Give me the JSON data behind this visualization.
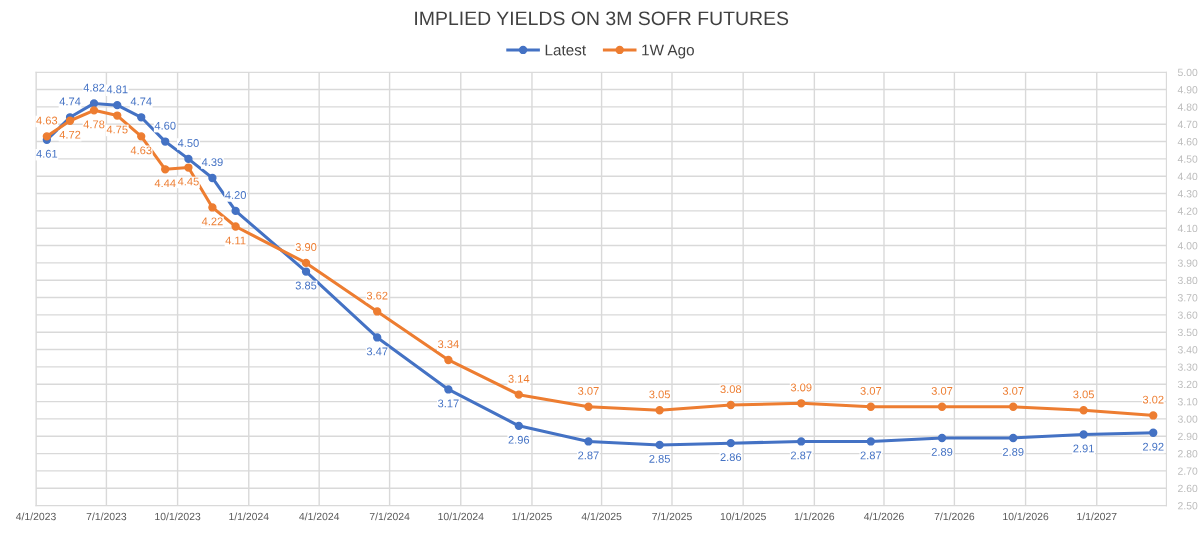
{
  "chart_data": {
    "type": "line",
    "title": "IMPLIED YIELDS ON 3M SOFR FUTURES",
    "x": [
      "2023-04-15",
      "2023-05-15",
      "2023-06-15",
      "2023-07-15",
      "2023-08-15",
      "2023-09-15",
      "2023-10-15",
      "2023-11-15",
      "2023-12-15",
      "2024-03-15",
      "2024-06-15",
      "2024-09-15",
      "2024-12-15",
      "2025-03-15",
      "2025-06-15",
      "2025-09-15",
      "2025-12-15",
      "2026-03-15",
      "2026-06-15",
      "2026-09-15",
      "2026-12-15",
      "2027-03-15"
    ],
    "series": [
      {
        "name": "Latest",
        "color": "#4472c4",
        "values": [
          4.61,
          4.74,
          4.82,
          4.81,
          4.74,
          4.6,
          4.5,
          4.39,
          4.2,
          3.85,
          3.47,
          3.17,
          2.96,
          2.87,
          2.85,
          2.86,
          2.87,
          2.87,
          2.89,
          2.89,
          2.91,
          2.92
        ],
        "value_labels": [
          "4.61",
          "4.74",
          "4.82",
          "4.81",
          "4.74",
          "4.60",
          "4.50",
          "4.39",
          "4.20",
          "3.85",
          "3.47",
          "3.17",
          "2.96",
          "2.87",
          "2.85",
          "2.86",
          "2.87",
          "2.87",
          "2.89",
          "2.89",
          "2.91",
          "2.92"
        ]
      },
      {
        "name": "1W Ago",
        "color": "#ed7d31",
        "values": [
          4.63,
          4.72,
          4.78,
          4.75,
          4.63,
          4.44,
          4.45,
          4.22,
          4.11,
          3.9,
          3.62,
          3.34,
          3.14,
          3.07,
          3.05,
          3.08,
          3.09,
          3.07,
          3.07,
          3.07,
          3.05,
          3.02
        ],
        "value_labels": [
          "4.63",
          "4.72",
          "4.78",
          "4.75",
          "4.63",
          "4.44",
          "4.45",
          "4.22",
          "4.11",
          "3.90",
          "3.62",
          "3.34",
          "3.14",
          "3.07",
          "3.05",
          "3.08",
          "3.09",
          "3.07",
          "3.07",
          "3.07",
          "3.05",
          "3.02"
        ]
      }
    ],
    "xlim": [
      "2023-04-01",
      "2027-04-01"
    ],
    "xticks": [
      {
        "value": "2023-04-01",
        "label": "4/1/2023"
      },
      {
        "value": "2023-07-01",
        "label": "7/1/2023"
      },
      {
        "value": "2023-10-01",
        "label": "10/1/2023"
      },
      {
        "value": "2024-01-01",
        "label": "1/1/2024"
      },
      {
        "value": "2024-04-01",
        "label": "4/1/2024"
      },
      {
        "value": "2024-07-01",
        "label": "7/1/2024"
      },
      {
        "value": "2024-10-01",
        "label": "10/1/2024"
      },
      {
        "value": "2025-01-01",
        "label": "1/1/2025"
      },
      {
        "value": "2025-04-01",
        "label": "4/1/2025"
      },
      {
        "value": "2025-07-01",
        "label": "7/1/2025"
      },
      {
        "value": "2025-10-01",
        "label": "10/1/2025"
      },
      {
        "value": "2026-01-01",
        "label": "1/1/2026"
      },
      {
        "value": "2026-04-01",
        "label": "4/1/2026"
      },
      {
        "value": "2026-07-01",
        "label": "7/1/2026"
      },
      {
        "value": "2026-10-01",
        "label": "10/1/2026"
      },
      {
        "value": "2027-01-01",
        "label": "1/1/2027"
      }
    ],
    "ylim": [
      2.5,
      5.0
    ],
    "yticks": [
      {
        "value": 2.5,
        "label": "2.50"
      },
      {
        "value": 2.6,
        "label": "2.60"
      },
      {
        "value": 2.7,
        "label": "2.70"
      },
      {
        "value": 2.8,
        "label": "2.80"
      },
      {
        "value": 2.9,
        "label": "2.90"
      },
      {
        "value": 3.0,
        "label": "3.00"
      },
      {
        "value": 3.1,
        "label": "3.10"
      },
      {
        "value": 3.2,
        "label": "3.20"
      },
      {
        "value": 3.3,
        "label": "3.30"
      },
      {
        "value": 3.4,
        "label": "3.40"
      },
      {
        "value": 3.5,
        "label": "3.50"
      },
      {
        "value": 3.6,
        "label": "3.60"
      },
      {
        "value": 3.7,
        "label": "3.70"
      },
      {
        "value": 3.8,
        "label": "3.80"
      },
      {
        "value": 3.9,
        "label": "3.90"
      },
      {
        "value": 4.0,
        "label": "4.00"
      },
      {
        "value": 4.1,
        "label": "4.10"
      },
      {
        "value": 4.2,
        "label": "4.20"
      },
      {
        "value": 4.3,
        "label": "4.30"
      },
      {
        "value": 4.4,
        "label": "4.40"
      },
      {
        "value": 4.5,
        "label": "4.50"
      },
      {
        "value": 4.6,
        "label": "4.60"
      },
      {
        "value": 4.7,
        "label": "4.70"
      },
      {
        "value": 4.8,
        "label": "4.80"
      },
      {
        "value": 4.9,
        "label": "4.90"
      },
      {
        "value": 5.0,
        "label": "5.00"
      }
    ],
    "grid": true,
    "legend": "top",
    "marker": "circle",
    "line_style": "solid"
  }
}
